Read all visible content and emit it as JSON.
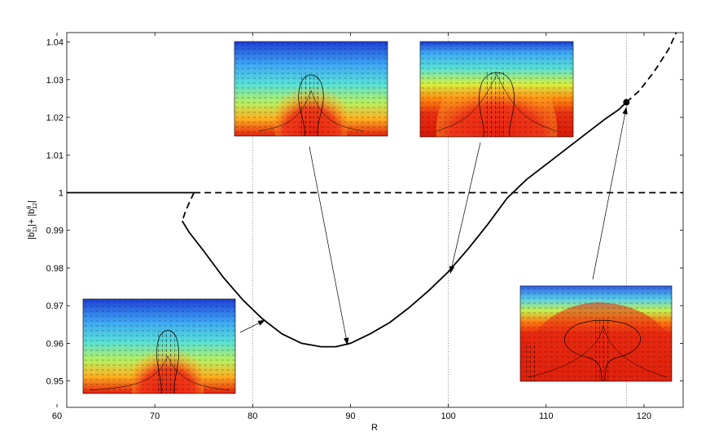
{
  "chart_data": {
    "type": "line",
    "xlabel": "R",
    "ylabel": "|bθ₁₁|+ |bθ₁₂|",
    "ylabel_parts": {
      "pre": "|b",
      "sup1": "θ",
      "sub1": "11",
      "mid": "|+ |b",
      "sup2": "θ",
      "sub2": "12",
      "post": "|"
    },
    "xlim": [
      61,
      124
    ],
    "ylim": [
      0.943,
      1.0425
    ],
    "x_ticks": [
      60,
      70,
      80,
      90,
      100,
      110,
      120
    ],
    "y_ticks": [
      0.95,
      0.96,
      0.97,
      0.98,
      0.99,
      1,
      1.01,
      1.02,
      1.03,
      1.04
    ],
    "x_tick_labels": [
      "60",
      "70",
      "80",
      "90",
      "100",
      "110",
      "120"
    ],
    "y_tick_labels": [
      "0.95",
      "0.96",
      "0.97",
      "0.98",
      "0.99",
      "1",
      "1.01",
      "1.02",
      "1.03",
      "1.04"
    ],
    "vertical_reference_lines": [
      80,
      100,
      118.2
    ],
    "series": [
      {
        "style": "solid",
        "x": [
          61,
          74
        ],
        "y": [
          1.0,
          1.0
        ]
      },
      {
        "style": "dashed",
        "x": [
          74,
          124
        ],
        "y": [
          1.0,
          1.0
        ]
      },
      {
        "style": "dashed",
        "x": [
          74,
          73.2,
          72.8
        ],
        "y": [
          1.0,
          0.9955,
          0.9925
        ]
      },
      {
        "style": "solid",
        "x": [
          72.8,
          73.5,
          75,
          77,
          79,
          81,
          83,
          85,
          87,
          88.5,
          90,
          92,
          94,
          96,
          98,
          100,
          102,
          104,
          106,
          108,
          110,
          112,
          114,
          116,
          117.4,
          118.2
        ],
        "y": [
          0.9925,
          0.9895,
          0.9845,
          0.9775,
          0.9715,
          0.9665,
          0.9625,
          0.96,
          0.9591,
          0.9591,
          0.96,
          0.9625,
          0.9655,
          0.9695,
          0.974,
          0.979,
          0.985,
          0.9915,
          0.9985,
          1.0035,
          1.0075,
          1.0115,
          1.0155,
          1.0195,
          1.022,
          1.024
        ]
      },
      {
        "style": "dashed",
        "x": [
          118.2,
          119.5,
          121,
          122.5,
          123.3
        ],
        "y": [
          1.024,
          1.027,
          1.032,
          1.038,
          1.0425
        ]
      }
    ],
    "markers": [
      {
        "x": 118.2,
        "y": 1.024
      }
    ],
    "insets": [
      {
        "id": "inset-top-left",
        "plume": "narrow",
        "target": [
          89.7,
          0.9595
        ]
      },
      {
        "id": "inset-top-right",
        "plume": "wide",
        "target": [
          100.2,
          0.9785
        ]
      },
      {
        "id": "inset-bottom-left",
        "plume": "narrow-low",
        "target": [
          81.3,
          0.9662
        ]
      },
      {
        "id": "inset-bottom-right",
        "plume": "mushroom",
        "target": [
          118.2,
          1.0228
        ]
      }
    ]
  }
}
